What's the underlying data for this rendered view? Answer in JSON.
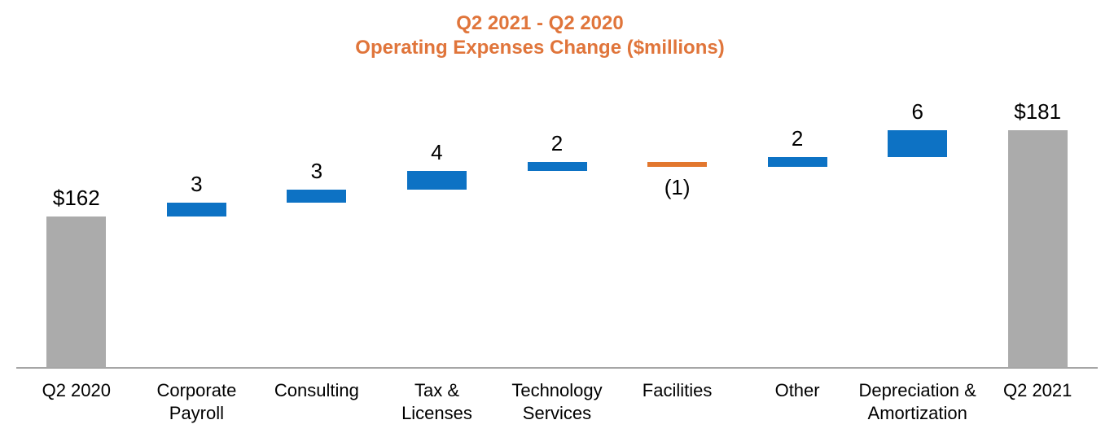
{
  "title": {
    "line1": "Q2 2021 - Q2 2020",
    "line2": "Operating Expenses Change ($millions)"
  },
  "colors": {
    "title_orange": "#E0753B",
    "increase_blue": "#0D72C4",
    "decrease_orange": "#E2772E",
    "total_gray": "#ABABAB",
    "axis_gray": "#A6A6A6",
    "label_black": "#000000",
    "background": "#FFFFFF"
  },
  "chart_data": {
    "type": "bar",
    "subtype": "waterfall",
    "title": "Q2 2021 - Q2 2020",
    "subtitle": "Operating Expenses Change ($millions)",
    "unit": "$millions",
    "categories": [
      "Q2 2020",
      "Corporate Payroll",
      "Consulting",
      "Tax & Licenses",
      "Technology Services",
      "Facilities",
      "Other",
      "Depreciation & Amortization",
      "Q2 2021"
    ],
    "category_label_lines": [
      [
        "Q2 2020"
      ],
      [
        "Corporate",
        "Payroll"
      ],
      [
        "Consulting"
      ],
      [
        "Tax &",
        "Licenses"
      ],
      [
        "Technology",
        "Services"
      ],
      [
        "Facilities"
      ],
      [
        "Other"
      ],
      [
        "Depreciation &",
        "Amortization"
      ],
      [
        "Q2 2021"
      ]
    ],
    "bars": [
      {
        "category": "Q2 2020",
        "kind": "total",
        "value": 162,
        "label": "$162",
        "cumulative_start": 0,
        "cumulative_end": 162
      },
      {
        "category": "Corporate Payroll",
        "kind": "increase",
        "value": 3,
        "label": "3",
        "cumulative_start": 162,
        "cumulative_end": 165
      },
      {
        "category": "Consulting",
        "kind": "increase",
        "value": 3,
        "label": "3",
        "cumulative_start": 165,
        "cumulative_end": 168
      },
      {
        "category": "Tax & Licenses",
        "kind": "increase",
        "value": 4,
        "label": "4",
        "cumulative_start": 168,
        "cumulative_end": 172
      },
      {
        "category": "Technology Services",
        "kind": "increase",
        "value": 2,
        "label": "2",
        "cumulative_start": 172,
        "cumulative_end": 174
      },
      {
        "category": "Facilities",
        "kind": "decrease",
        "value": -1,
        "label": "(1)",
        "cumulative_start": 174,
        "cumulative_end": 173
      },
      {
        "category": "Other",
        "kind": "increase",
        "value": 2,
        "label": "2",
        "cumulative_start": 173,
        "cumulative_end": 175
      },
      {
        "category": "Depreciation & Amortization",
        "kind": "increase",
        "value": 6,
        "label": "6",
        "cumulative_start": 175,
        "cumulative_end": 181
      },
      {
        "category": "Q2 2021",
        "kind": "total",
        "value": 181,
        "label": "$181",
        "cumulative_start": 0,
        "cumulative_end": 181
      }
    ],
    "ylim": [
      129,
      186
    ],
    "axes": {
      "x_axis_line": true,
      "y_axis_visible": false,
      "gridlines": false
    },
    "legend": "none"
  }
}
